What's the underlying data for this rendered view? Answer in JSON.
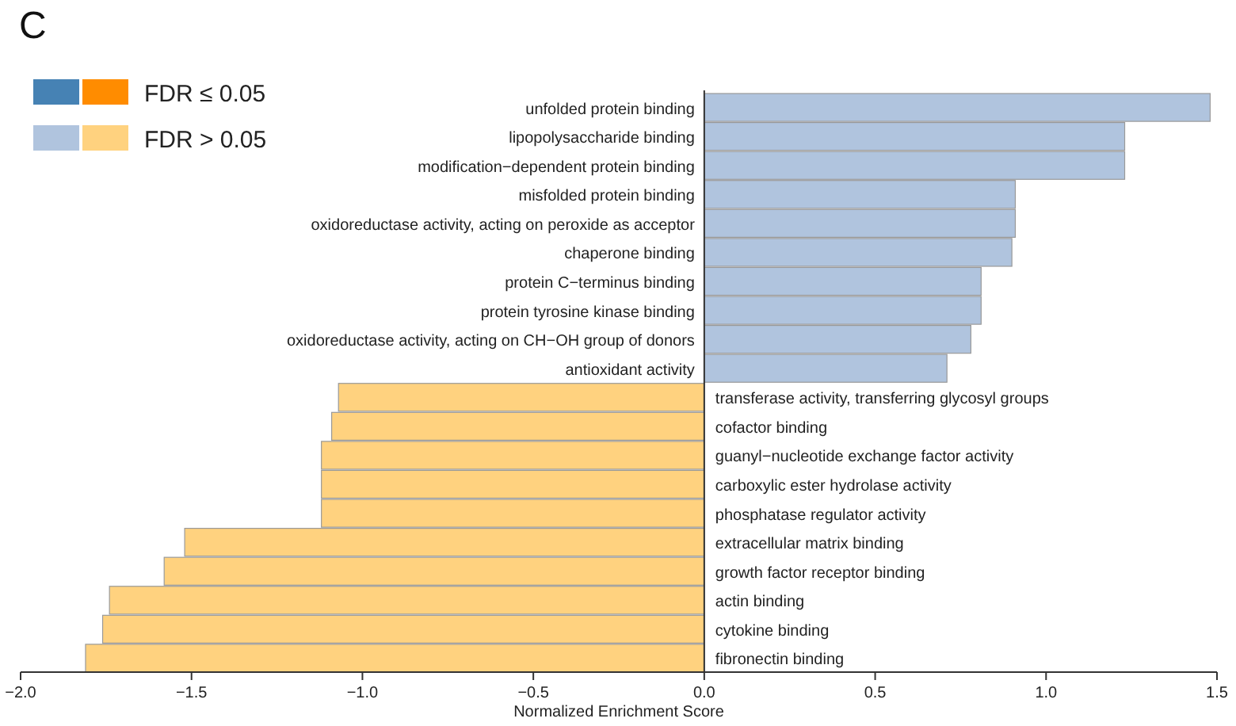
{
  "chart_data": {
    "type": "bar",
    "orientation": "horizontal",
    "title": "C",
    "xlabel": "Normalized Enrichment Score",
    "categories": [
      "unfolded protein binding",
      "lipopolysaccharide binding",
      "modification−dependent protein binding",
      "misfolded protein binding",
      "oxidoreductase activity, acting on peroxide as acceptor",
      "chaperone binding",
      "protein C−terminus binding",
      "protein tyrosine kinase binding",
      "oxidoreductase activity, acting on CH−OH group of donors",
      "antioxidant activity",
      "transferase activity, transferring glycosyl groups",
      "cofactor binding",
      "guanyl−nucleotide exchange factor activity",
      "carboxylic ester hydrolase activity",
      "phosphatase regulator activity",
      "extracellular matrix binding",
      "growth factor receptor binding",
      "actin binding",
      "cytokine binding",
      "fibronectin binding"
    ],
    "series": [
      {
        "name": "FDR ≤ 0.05",
        "colors": [
          "#4682b4",
          "#4682b4",
          "#4682b4",
          "#4682b4",
          "#4682b4",
          "#4682b4",
          "#4682b4",
          "#4682b4",
          "#4682b4",
          "#4682b4",
          "#ff8c00",
          "#ff8c00",
          "#ff8c00",
          "#ff8c00",
          "#ff8c00",
          "#ff8c00",
          "#ff8c00",
          "#ff8c00",
          "#ff8c00",
          "#ff8c00"
        ],
        "values": [
          null,
          null,
          null,
          null,
          null,
          null,
          null,
          null,
          null,
          null,
          null,
          null,
          null,
          null,
          null,
          null,
          null,
          null,
          null,
          null
        ]
      },
      {
        "name": "FDR > 0.05",
        "colors": [
          "#b0c4de",
          "#b0c4de",
          "#b0c4de",
          "#b0c4de",
          "#b0c4de",
          "#b0c4de",
          "#b0c4de",
          "#b0c4de",
          "#b0c4de",
          "#b0c4de",
          "#ffd27f",
          "#ffd27f",
          "#ffd27f",
          "#ffd27f",
          "#ffd27f",
          "#ffd27f",
          "#ffd27f",
          "#ffd27f",
          "#ffd27f",
          "#ffd27f"
        ],
        "values": [
          1.48,
          1.23,
          1.23,
          0.91,
          0.91,
          0.9,
          0.81,
          0.81,
          0.78,
          0.71,
          -1.07,
          -1.09,
          -1.12,
          -1.12,
          -1.12,
          -1.52,
          -1.58,
          -1.74,
          -1.76,
          -1.81
        ]
      }
    ],
    "xlim": [
      -2,
      1.5
    ],
    "xticks": [
      {
        "value": -2,
        "label": "−2.0"
      },
      {
        "value": -1.5,
        "label": "−1.5"
      },
      {
        "value": -1,
        "label": "−1.0"
      },
      {
        "value": -0.5,
        "label": "−0.5"
      },
      {
        "value": 0,
        "label": "0.0"
      },
      {
        "value": 0.5,
        "label": "0.5"
      },
      {
        "value": 1,
        "label": "1.0"
      },
      {
        "value": 1.5,
        "label": "1.5"
      }
    ],
    "legend": "top left"
  }
}
